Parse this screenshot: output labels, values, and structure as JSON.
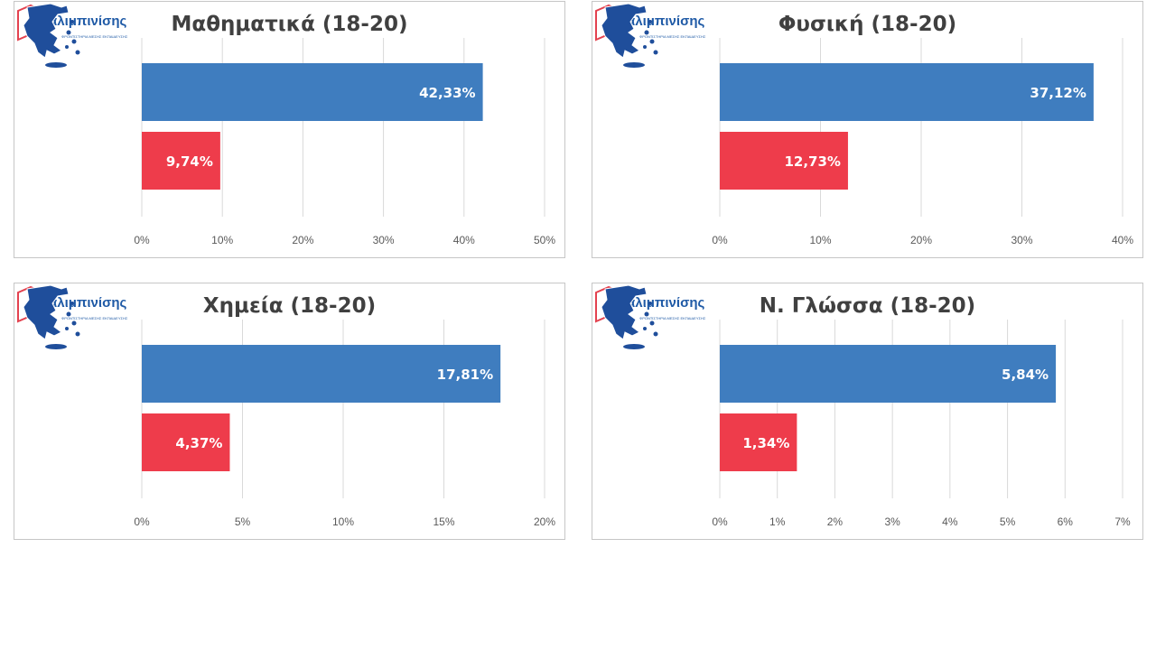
{
  "colors": {
    "institute_bar": "#3f7dbf",
    "national_bar": "#ee3c4b",
    "grid": "#d9d9d9",
    "tick_text": "#595959",
    "title_text": "#404040",
    "map_fill": "#1f4e9b"
  },
  "icons": {
    "institute_logo": "book-logo-icon",
    "national": "greece-map-icon"
  },
  "logo": {
    "name": "αλιμπινίσης",
    "tagline": "ΦΡΟΝΤΙΣΤΗΡΙΑ ΜΕΣΗΣ ΕΚΠΑΙΔΕΥΣΗΣ"
  },
  "chart_data": [
    {
      "type": "bar",
      "orientation": "horizontal",
      "title": "Μαθηματικά (18-20)",
      "values": [
        42.33,
        9.74
      ],
      "value_labels": [
        "42,33%",
        "9,74%"
      ],
      "xlim": [
        0,
        50
      ],
      "xticks": [
        "0%",
        "10%",
        "20%",
        "30%",
        "40%",
        "50%"
      ],
      "grid": true
    },
    {
      "type": "bar",
      "orientation": "horizontal",
      "title": "Φυσική (18-20)",
      "values": [
        37.12,
        12.73
      ],
      "value_labels": [
        "37,12%",
        "12,73%"
      ],
      "xlim": [
        0,
        40
      ],
      "xticks": [
        "0%",
        "10%",
        "20%",
        "30%",
        "40%"
      ],
      "grid": true
    },
    {
      "type": "bar",
      "orientation": "horizontal",
      "title": "Χημεία (18-20)",
      "values": [
        17.81,
        4.37
      ],
      "value_labels": [
        "17,81%",
        "4,37%"
      ],
      "xlim": [
        0,
        20
      ],
      "xticks": [
        "0%",
        "5%",
        "10%",
        "15%",
        "20%"
      ],
      "grid": true
    },
    {
      "type": "bar",
      "orientation": "horizontal",
      "title": "Ν. Γλώσσα (18-20)",
      "values": [
        5.84,
        1.34
      ],
      "value_labels": [
        "5,84%",
        "1,34%"
      ],
      "xlim": [
        0,
        7
      ],
      "xticks": [
        "0%",
        "1%",
        "2%",
        "3%",
        "4%",
        "5%",
        "6%",
        "7%"
      ],
      "grid": true
    }
  ]
}
